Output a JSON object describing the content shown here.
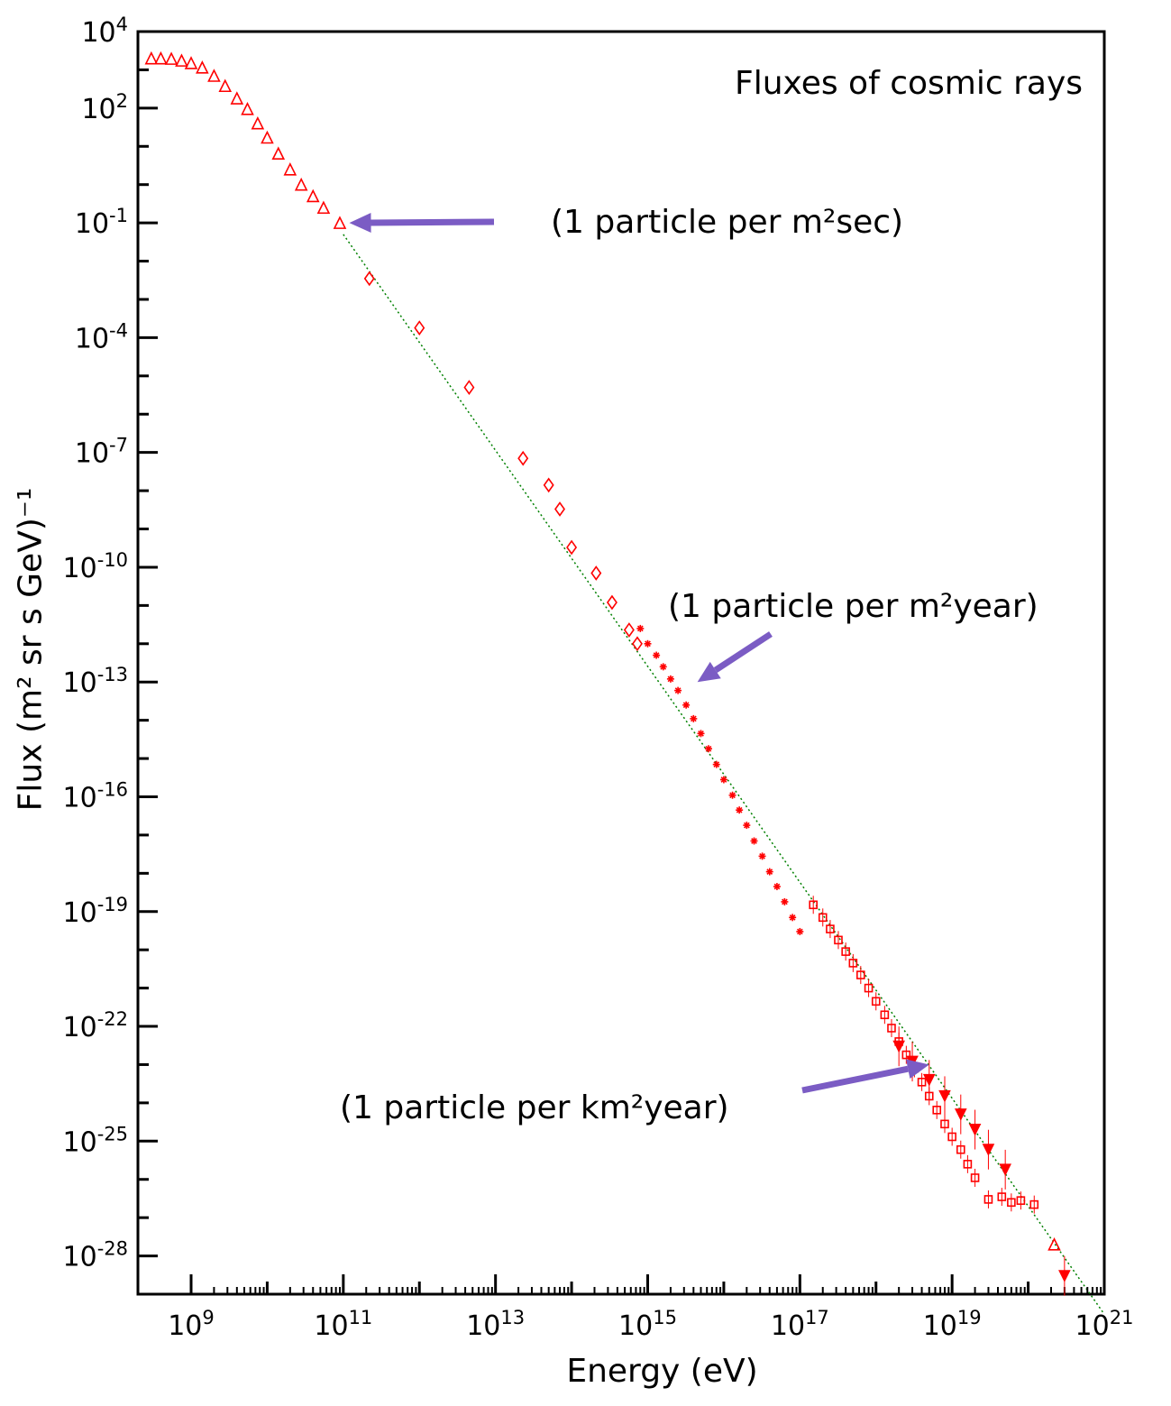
{
  "chart_data": {
    "type": "scatter",
    "title": "Fluxes of cosmic rays",
    "xlabel": "Energy (eV)",
    "ylabel": "Flux (m² sr s GeV)⁻¹",
    "x_scale": "log",
    "y_scale": "log",
    "xlim": [
      200000000.0,
      1e+21
    ],
    "ylim": [
      1e-29,
      10000.0
    ],
    "grid": false,
    "x_ticks": [
      {
        "label": "10",
        "exp": "9",
        "value": 1000000000.0
      },
      {
        "label": "10",
        "exp": "11",
        "value": 100000000000.0
      },
      {
        "label": "10",
        "exp": "13",
        "value": 10000000000000.0
      },
      {
        "label": "10",
        "exp": "15",
        "value": 1000000000000000.0
      },
      {
        "label": "10",
        "exp": "17",
        "value": 1e+17
      },
      {
        "label": "10",
        "exp": "19",
        "value": 1e+19
      },
      {
        "label": "10",
        "exp": "21",
        "value": 1e+21
      }
    ],
    "y_ticks": [
      {
        "label": "10",
        "exp": "4",
        "value": 10000.0
      },
      {
        "label": "10",
        "exp": "2",
        "value": 100.0
      },
      {
        "label": "10",
        "exp": "-1",
        "value": 0.1
      },
      {
        "label": "10",
        "exp": "-4",
        "value": 0.0001
      },
      {
        "label": "10",
        "exp": "-7",
        "value": 1e-07
      },
      {
        "label": "10",
        "exp": "-10",
        "value": 1e-10
      },
      {
        "label": "10",
        "exp": "-13",
        "value": 1e-13
      },
      {
        "label": "10",
        "exp": "-16",
        "value": 1e-16
      },
      {
        "label": "10",
        "exp": "-19",
        "value": 1e-19
      },
      {
        "label": "10",
        "exp": "-22",
        "value": 1e-22
      },
      {
        "label": "10",
        "exp": "-25",
        "value": 1e-25
      },
      {
        "label": "10",
        "exp": "-28",
        "value": 1e-28
      }
    ],
    "series": [
      {
        "marker": "triangle",
        "color": "#ff0000",
        "x": [
          300000000.0,
          400000000.0,
          550000000.0,
          750000000.0,
          1000000000.0,
          1400000000.0,
          2000000000.0,
          2800000000.0,
          4000000000.0,
          5500000000.0,
          7500000000.0,
          10000000000.0,
          14000000000.0,
          20000000000.0,
          28000000000.0,
          40000000000.0,
          55000000000.0,
          90000000000.0
        ],
        "y": [
          2000,
          2000,
          1950,
          1750,
          1500,
          1150,
          700,
          380,
          180,
          95,
          40,
          17,
          6.5,
          2.5,
          1.0,
          0.5,
          0.25,
          0.1
        ]
      },
      {
        "marker": "diamond",
        "color": "#ff0000",
        "x": [
          220000000000.0,
          1000000000000.0,
          4500000000000.0,
          23000000000000.0,
          50000000000000.0,
          70000000000000.0,
          100000000000000.0,
          210000000000000.0,
          340000000000000.0,
          570000000000000.0,
          730000000000000.0
        ],
        "y": [
          0.0035,
          0.00018,
          5e-06,
          7e-08,
          1.4e-08,
          3.3e-09,
          3.3e-10,
          7e-11,
          1.2e-11,
          2.3e-12,
          1e-12
        ]
      },
      {
        "marker": "star",
        "color": "#ff0000",
        "x": [
          800000000000000.0,
          1000000000000000.0,
          1300000000000000.0,
          1600000000000000.0,
          2000000000000000.0,
          2500000000000000.0,
          3200000000000000.0,
          4000000000000000.0,
          5000000000000000.0,
          6300000000000000.0,
          8000000000000000.0,
          1e+16,
          1.3e+16,
          1.6e+16,
          2e+16,
          2.5e+16,
          3.2e+16,
          4e+16,
          5e+16,
          6.3e+16,
          8e+16,
          1e+17
        ],
        "y": [
          2.5e-12,
          1e-12,
          5e-13,
          2.5e-13,
          1.2e-13,
          6e-14,
          2.5e-14,
          1.1e-14,
          4.5e-15,
          1.8e-15,
          7e-16,
          2.8e-16,
          1.1e-16,
          4.5e-17,
          1.8e-17,
          7e-18,
          2.8e-18,
          1.1e-18,
          4.5e-19,
          1.8e-19,
          7e-20,
          3e-20
        ]
      },
      {
        "marker": "square",
        "color": "#ff0000",
        "x": [
          1.5e+17,
          2e+17,
          2.5e+17,
          3.2e+17,
          4e+17,
          5e+17,
          6.3e+17,
          8e+17,
          1e+18,
          1.3e+18,
          1.6e+18,
          2e+18,
          2.5e+18,
          3.2e+18,
          4e+18,
          5e+18,
          6.3e+18,
          8e+18,
          1e+19,
          1.3e+19,
          1.6e+19,
          2e+19,
          3e+19,
          4.5e+19,
          6e+19,
          8e+19,
          1.2e+20
        ],
        "y": [
          1.5e-19,
          7e-20,
          3.5e-20,
          1.8e-20,
          9e-21,
          4.5e-21,
          2.2e-21,
          1e-21,
          4.5e-22,
          2e-22,
          9e-23,
          4e-23,
          1.8e-23,
          8e-24,
          3.5e-24,
          1.5e-24,
          6.5e-25,
          2.8e-25,
          1.3e-25,
          6e-26,
          2.5e-26,
          1.1e-26,
          3e-27,
          3.5e-27,
          2.5e-27,
          2.8e-27,
          2.2e-27
        ]
      },
      {
        "marker": "triangle-down",
        "color": "#ff0000",
        "x": [
          2e+18,
          3e+18,
          5e+18,
          8e+18,
          1.3e+19,
          2e+19,
          3e+19,
          5e+19,
          3e+20
        ],
        "y": [
          3e-23,
          1.2e-23,
          4e-24,
          1.5e-24,
          5e-25,
          2e-25,
          6e-26,
          1.8e-26,
          3e-29
        ]
      },
      {
        "marker": "triangle",
        "color": "#ff0000",
        "x": [
          2.2e+20
        ],
        "y": [
          2e-28
        ]
      }
    ],
    "fit_line": {
      "style": "dotted",
      "color": "#008000",
      "x": [
        100000000000.0,
        1e+21
      ],
      "y": [
        0.05,
        3e-30
      ]
    },
    "annotations": [
      {
        "text": "(1 particle per m²sec)",
        "points_to": {
          "x": 120000000000.0,
          "y": 0.1
        }
      },
      {
        "text": "(1 particle per m²year)",
        "points_to": {
          "x": 4500000000000000.0,
          "y": 1e-13
        }
      },
      {
        "text": "(1 particle per km²year)",
        "points_to": {
          "x": 5e+18,
          "y": 1e-23
        }
      }
    ],
    "colors": {
      "markers": "#ff0000",
      "arrows": "#7b5cc4",
      "fit_line": "#008000",
      "frame": "#000000"
    }
  }
}
